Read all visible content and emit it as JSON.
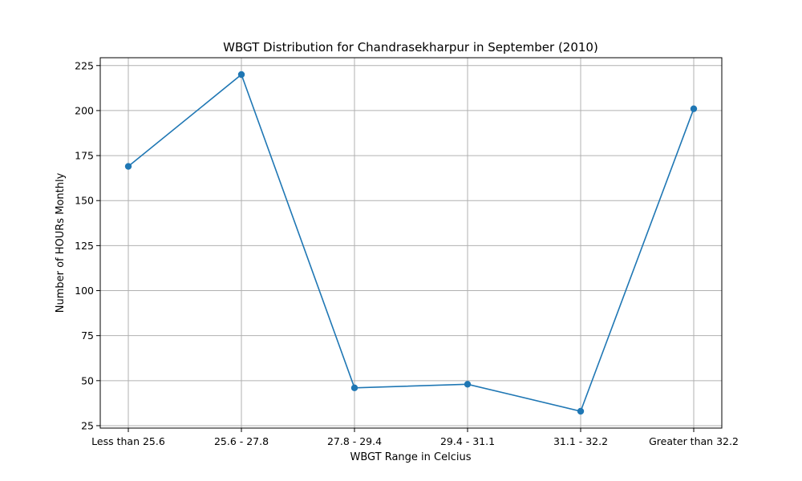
{
  "chart_data": {
    "type": "line",
    "title": "WBGT Distribution for Chandrasekharpur in September (2010)",
    "xlabel": "WBGT Range in Celcius",
    "ylabel": "Number of HOURs Monthly",
    "categories": [
      "Less than 25.6",
      "25.6 - 27.8",
      "27.8 - 29.4",
      "29.4 - 31.1",
      "31.1 - 32.2",
      "Greater than 32.2"
    ],
    "series": [
      {
        "values": [
          169,
          220,
          46,
          48,
          33,
          201
        ],
        "color": "#1f77b4",
        "marker": "circle"
      }
    ],
    "ylim": [
      23.65,
      229.35
    ],
    "yticks": [
      25,
      50,
      75,
      100,
      125,
      150,
      175,
      200,
      225
    ],
    "grid": true,
    "legend": "none"
  }
}
